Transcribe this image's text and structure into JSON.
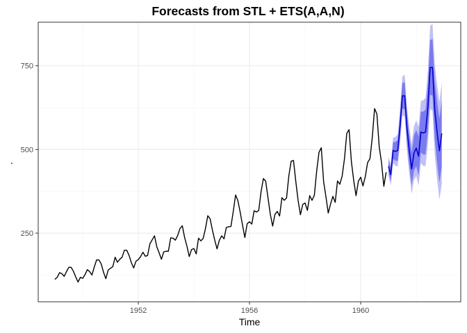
{
  "chart_data": {
    "type": "line",
    "title": "Forecasts from STL +  ETS(A,A,N)",
    "xlabel": "Time",
    "ylabel": ".",
    "xlim": [
      1948.4,
      1963.6
    ],
    "ylim": [
      45,
      880
    ],
    "x_ticks": [
      1952,
      1956,
      1960
    ],
    "x_tick_labels": [
      "1952",
      "1956",
      "1960"
    ],
    "y_ticks": [
      250,
      500,
      750
    ],
    "y_tick_labels": [
      "250",
      "500",
      "750"
    ],
    "grid": true,
    "legend": "none",
    "colors": {
      "history": "#000000",
      "forecast": "#0000cc",
      "pi80": "#7b7bf0",
      "pi95": "#c0c0f5",
      "grid": "#ebebeb",
      "panel_border": "#333333"
    },
    "history": {
      "name": "",
      "start": 1949.0,
      "frequency": 12,
      "values": [
        112,
        118,
        132,
        129,
        121,
        135,
        148,
        148,
        136,
        119,
        104,
        118,
        115,
        126,
        141,
        135,
        125,
        149,
        170,
        170,
        158,
        133,
        114,
        140,
        145,
        150,
        178,
        163,
        172,
        178,
        199,
        199,
        184,
        162,
        146,
        166,
        171,
        180,
        193,
        181,
        183,
        218,
        230,
        242,
        209,
        191,
        172,
        194,
        196,
        196,
        236,
        235,
        229,
        243,
        264,
        272,
        237,
        211,
        180,
        201,
        204,
        188,
        235,
        227,
        234,
        264,
        302,
        293,
        259,
        229,
        203,
        229,
        242,
        233,
        267,
        269,
        270,
        315,
        364,
        347,
        312,
        274,
        237,
        278,
        284,
        277,
        317,
        313,
        318,
        374,
        413,
        405,
        355,
        306,
        271,
        306,
        315,
        301,
        356,
        348,
        355,
        422,
        465,
        467,
        404,
        347,
        305,
        336,
        340,
        318,
        362,
        348,
        363,
        435,
        491,
        505,
        404,
        359,
        310,
        337,
        360,
        342,
        406,
        396,
        420,
        472,
        548,
        559,
        463,
        407,
        362,
        405,
        417,
        391,
        419,
        461,
        472,
        535,
        622,
        606,
        508,
        461,
        390,
        432
      ]
    },
    "forecast": {
      "start": 1961.0,
      "frequency": 12,
      "mean": [
        450,
        425,
        497,
        494,
        497,
        570,
        660,
        660,
        562,
        496,
        442,
        489,
        504,
        480,
        552,
        549,
        552,
        624,
        745,
        745,
        617,
        551,
        496,
        548
      ],
      "lo80": [
        432,
        404,
        472,
        466,
        466,
        536,
        622,
        619,
        519,
        450,
        393,
        437,
        450,
        422,
        491,
        485,
        485,
        553,
        664,
        660,
        529,
        459,
        401,
        449
      ],
      "hi80": [
        468,
        446,
        522,
        522,
        528,
        604,
        698,
        701,
        605,
        542,
        491,
        541,
        558,
        538,
        613,
        613,
        619,
        695,
        826,
        830,
        705,
        643,
        591,
        647
      ],
      "lo95": [
        422,
        393,
        459,
        451,
        449,
        518,
        602,
        597,
        496,
        426,
        367,
        409,
        421,
        392,
        459,
        451,
        450,
        515,
        621,
        615,
        482,
        410,
        350,
        396
      ],
      "hi95": [
        478,
        457,
        535,
        537,
        545,
        622,
        718,
        723,
        628,
        566,
        517,
        569,
        587,
        568,
        645,
        647,
        654,
        733,
        869,
        875,
        752,
        692,
        642,
        700
      ]
    }
  }
}
